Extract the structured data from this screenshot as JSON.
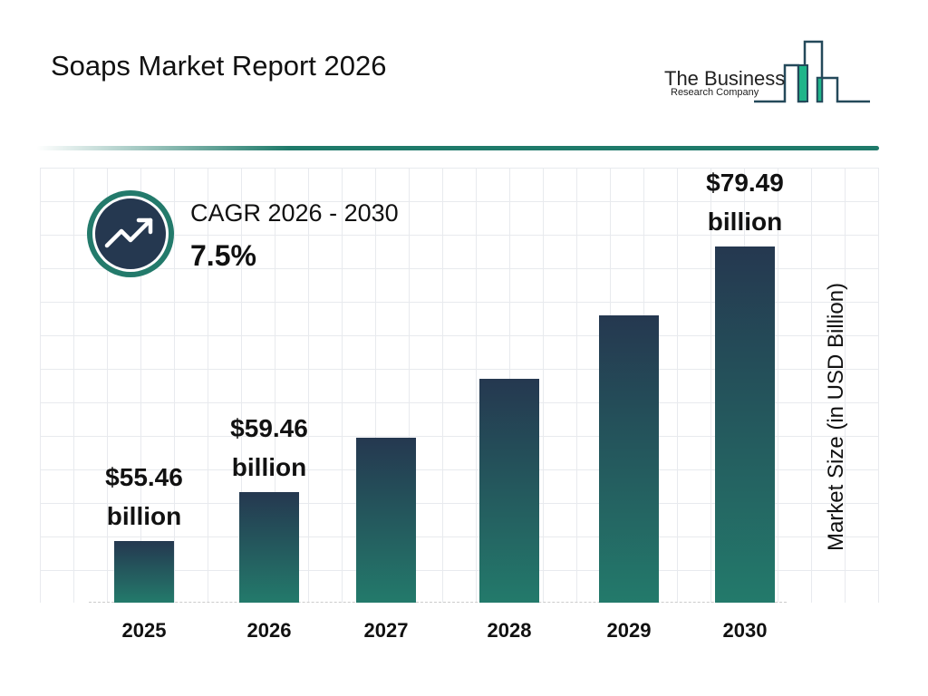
{
  "title": "Soaps Market Report 2026",
  "logo": {
    "line1": "The Business",
    "line2": "Research Company"
  },
  "cagr": {
    "label": "CAGR 2026 - 2030",
    "value": "7.5%",
    "icon": "trending-up-icon"
  },
  "colors": {
    "bar_top": "#253850",
    "bar_bottom": "#237a6b",
    "accent": "#1f7a6a",
    "logo_green": "#1fb58a"
  },
  "chart_data": {
    "type": "bar",
    "categories": [
      "2025",
      "2026",
      "2027",
      "2028",
      "2029",
      "2030"
    ],
    "values": [
      55.46,
      59.46,
      63.9,
      68.7,
      73.9,
      79.49
    ],
    "data_labels": [
      "$55.46 billion",
      "$59.46 billion",
      "",
      "",
      "",
      "$79.49 billion"
    ],
    "data_label_lines": [
      [
        "$55.46",
        "billion"
      ],
      [
        "$59.46",
        "billion"
      ],
      null,
      null,
      null,
      [
        "$79.49",
        "billion"
      ]
    ],
    "ylabel": "Market Size (in USD Billion)",
    "xlabel": "",
    "grid": true
  }
}
